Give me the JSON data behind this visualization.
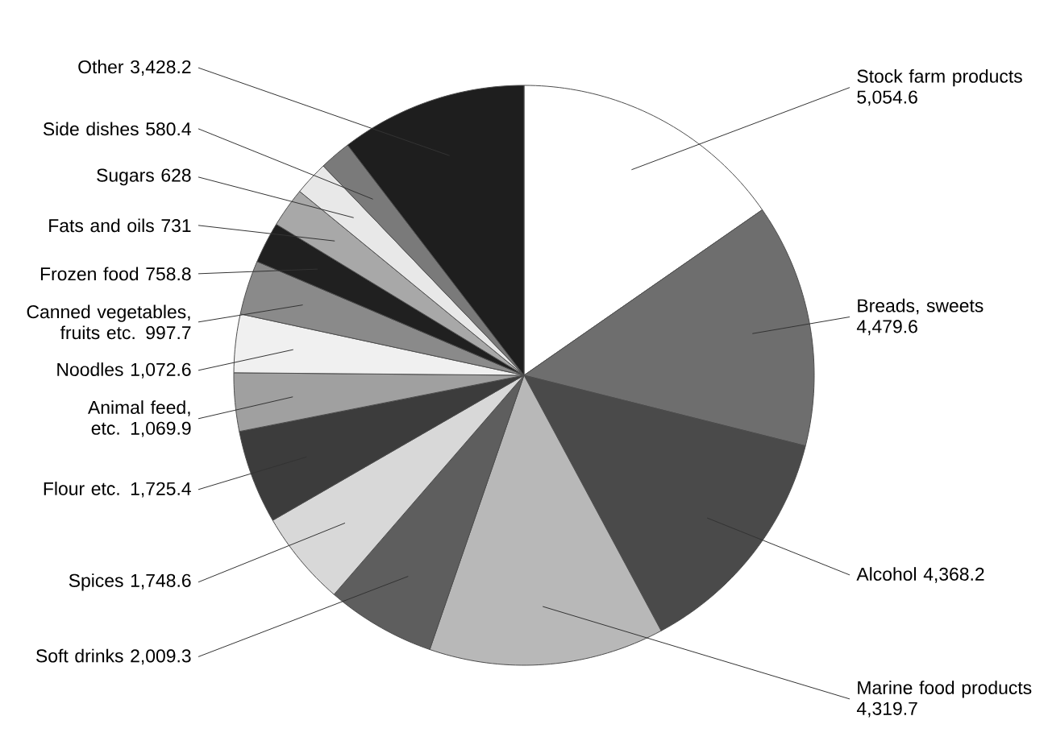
{
  "chart_data": {
    "type": "pie",
    "categories": [
      "Stock farm products",
      "Breads, sweets",
      "Alcohol",
      "Marine food products",
      "Soft drinks",
      "Spices",
      "Flour etc.",
      "Animal feed, etc.",
      "Noodles",
      "Canned vegetables, fruits etc.",
      "Frozen food",
      "Fats and oils",
      "Sugars",
      "Side dishes",
      "Other"
    ],
    "values": [
      5054.6,
      4479.6,
      4368.2,
      4319.7,
      2009.3,
      1748.6,
      1725.4,
      1069.9,
      1072.6,
      997.7,
      758.8,
      731,
      628,
      580.4,
      3428.2
    ],
    "value_labels": [
      "5,054.6",
      "4,479.6",
      "4,368.2",
      "4,319.7",
      "2,009.3",
      "1,748.6",
      "1,725.4",
      "1,069.9",
      "1,072.6",
      "997.7",
      "758.8",
      "731",
      "628",
      "580.4",
      "3,428.2"
    ],
    "colors": [
      "#ffffff",
      "#6e6e6e",
      "#4a4a4a",
      "#b8b8b8",
      "#5e5e5e",
      "#d8d8d8",
      "#3c3c3c",
      "#a0a0a0",
      "#f0f0f0",
      "#8a8a8a",
      "#202020",
      "#a8a8a8",
      "#e8e8e8",
      "#7a7a7a",
      "#1e1e1e"
    ]
  }
}
